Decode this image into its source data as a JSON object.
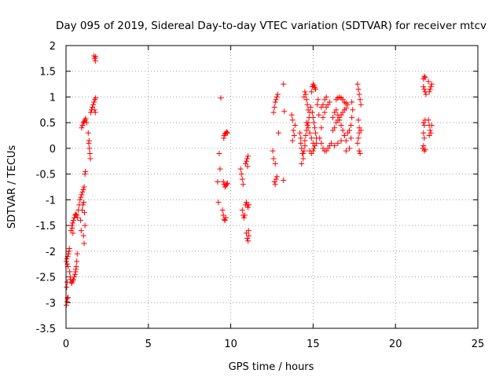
{
  "chart_data": {
    "type": "scatter",
    "title": "Day 095 of 2019, Sidereal Day-to-day VTEC variation (SDTVAR) for receiver mtcv",
    "xlabel": "GPS time / hours",
    "ylabel": "SDTVAR / TECUs",
    "xlim": [
      0,
      25
    ],
    "ylim": [
      -3.5,
      2
    ],
    "xticks": [
      0,
      5,
      10,
      15,
      20,
      25
    ],
    "xtick_labels": [
      "0",
      "5",
      "10",
      "15",
      "20",
      "25"
    ],
    "yticks": [
      -3.5,
      -3,
      -2.5,
      -2,
      -1.5,
      -1,
      -0.5,
      0,
      0.5,
      1,
      1.5,
      2
    ],
    "ytick_labels": [
      "-3.5",
      "-3",
      "-2.5",
      "-2",
      "-1.5",
      "-1",
      "-0.5",
      "0",
      "0.5",
      "1",
      "1.5",
      "2"
    ],
    "grid": true,
    "marker": "plus",
    "series": [
      {
        "name": "SDTVAR",
        "color": "#ff0000",
        "points": [
          [
            0.02,
            -3.05
          ],
          [
            0.05,
            -2.98
          ],
          [
            0.08,
            -2.92
          ],
          [
            0.12,
            -2.9
          ],
          [
            0.04,
            -2.7
          ],
          [
            0.07,
            -2.6
          ],
          [
            0.02,
            -2.2
          ],
          [
            0.05,
            -2.15
          ],
          [
            0.1,
            -2.1
          ],
          [
            0.15,
            -2.05
          ],
          [
            0.18,
            -2.0
          ],
          [
            0.2,
            -1.95
          ],
          [
            0.08,
            -2.25
          ],
          [
            0.12,
            -2.3
          ],
          [
            0.22,
            -2.4
          ],
          [
            0.25,
            -2.5
          ],
          [
            0.28,
            -2.55
          ],
          [
            0.32,
            -2.6
          ],
          [
            0.35,
            -2.62
          ],
          [
            0.4,
            -2.58
          ],
          [
            0.45,
            -2.55
          ],
          [
            0.5,
            -2.5
          ],
          [
            0.55,
            -2.45
          ],
          [
            0.6,
            -2.35
          ],
          [
            0.65,
            -2.2
          ],
          [
            0.68,
            -2.05
          ],
          [
            0.62,
            -2.3
          ],
          [
            0.58,
            -2.4
          ],
          [
            0.3,
            -1.6
          ],
          [
            0.35,
            -1.5
          ],
          [
            0.4,
            -1.45
          ],
          [
            0.45,
            -1.4
          ],
          [
            0.5,
            -1.35
          ],
          [
            0.55,
            -1.3
          ],
          [
            0.6,
            -1.28
          ],
          [
            0.65,
            -1.3
          ],
          [
            0.7,
            -1.35
          ],
          [
            0.38,
            -1.55
          ],
          [
            0.42,
            -1.65
          ],
          [
            0.75,
            -1.2
          ],
          [
            0.8,
            -1.1
          ],
          [
            0.85,
            -1.0
          ],
          [
            0.9,
            -0.95
          ],
          [
            0.95,
            -0.9
          ],
          [
            1.0,
            -0.85
          ],
          [
            1.05,
            -0.8
          ],
          [
            1.1,
            -0.75
          ],
          [
            0.88,
            -1.4
          ],
          [
            0.92,
            -1.6
          ],
          [
            0.98,
            -1.2
          ],
          [
            1.02,
            -1.1
          ],
          [
            1.08,
            -1.05
          ],
          [
            1.12,
            -1.25
          ],
          [
            1.15,
            -1.5
          ],
          [
            1.06,
            -1.7
          ],
          [
            1.1,
            -1.85
          ],
          [
            1.15,
            -0.5
          ],
          [
            1.18,
            -0.45
          ],
          [
            0.95,
            0.4
          ],
          [
            1.0,
            0.45
          ],
          [
            1.05,
            0.5
          ],
          [
            1.1,
            0.52
          ],
          [
            1.15,
            0.55
          ],
          [
            1.2,
            0.58
          ],
          [
            1.25,
            0.5
          ],
          [
            1.35,
            0.3
          ],
          [
            1.4,
            0.15
          ],
          [
            1.42,
            0.0
          ],
          [
            1.45,
            -0.1
          ],
          [
            1.48,
            -0.2
          ],
          [
            1.38,
            0.1
          ],
          [
            1.5,
            0.7
          ],
          [
            1.55,
            0.75
          ],
          [
            1.6,
            0.8
          ],
          [
            1.65,
            0.85
          ],
          [
            1.7,
            0.9
          ],
          [
            1.75,
            0.95
          ],
          [
            1.8,
            0.98
          ],
          [
            1.78,
            0.7
          ],
          [
            1.72,
            0.75
          ],
          [
            1.7,
            1.8
          ],
          [
            1.75,
            1.75
          ],
          [
            1.78,
            1.7
          ],
          [
            1.8,
            1.78
          ],
          [
            9.4,
            0.98
          ],
          [
            9.3,
            -0.1
          ],
          [
            9.35,
            -0.4
          ],
          [
            9.2,
            -0.65
          ],
          [
            9.25,
            -1.05
          ],
          [
            9.5,
            -1.2
          ],
          [
            9.55,
            -1.3
          ],
          [
            9.6,
            -1.38
          ],
          [
            9.65,
            -1.4
          ],
          [
            9.7,
            -1.35
          ],
          [
            9.55,
            -0.65
          ],
          [
            9.6,
            -0.7
          ],
          [
            9.65,
            -0.75
          ],
          [
            9.7,
            -0.72
          ],
          [
            9.75,
            -0.7
          ],
          [
            9.8,
            -0.68
          ],
          [
            9.6,
            0.25
          ],
          [
            9.65,
            0.28
          ],
          [
            9.7,
            0.3
          ],
          [
            9.75,
            0.32
          ],
          [
            9.8,
            0.3
          ],
          [
            9.58,
            0.2
          ],
          [
            10.6,
            -0.4
          ],
          [
            10.65,
            -0.5
          ],
          [
            10.7,
            -0.6
          ],
          [
            10.75,
            -0.7
          ],
          [
            10.7,
            -1.2
          ],
          [
            10.75,
            -1.3
          ],
          [
            10.8,
            -1.35
          ],
          [
            10.85,
            -1.3
          ],
          [
            10.9,
            -1.1
          ],
          [
            10.95,
            -1.05
          ],
          [
            11.0,
            -1.1
          ],
          [
            11.05,
            -1.15
          ],
          [
            11.1,
            -1.1
          ],
          [
            10.95,
            -1.65
          ],
          [
            11.0,
            -1.75
          ],
          [
            11.05,
            -1.8
          ],
          [
            11.1,
            -1.7
          ],
          [
            11.08,
            -1.6
          ],
          [
            10.9,
            -0.3
          ],
          [
            10.95,
            -0.25
          ],
          [
            11.0,
            -0.2
          ],
          [
            11.05,
            -0.15
          ],
          [
            11.02,
            -0.35
          ],
          [
            12.6,
            0.7
          ],
          [
            12.65,
            0.8
          ],
          [
            12.7,
            0.9
          ],
          [
            12.75,
            0.95
          ],
          [
            12.8,
            1.0
          ],
          [
            12.85,
            1.05
          ],
          [
            12.55,
            -0.05
          ],
          [
            12.6,
            -0.2
          ],
          [
            12.7,
            -0.3
          ],
          [
            12.65,
            -0.65
          ],
          [
            12.7,
            -0.7
          ],
          [
            12.75,
            -0.6
          ],
          [
            12.8,
            -0.55
          ],
          [
            12.9,
            0.3
          ],
          [
            13.2,
            1.25
          ],
          [
            13.25,
            0.72
          ],
          [
            13.2,
            -0.62
          ],
          [
            13.7,
            0.65
          ],
          [
            13.75,
            0.55
          ],
          [
            13.8,
            0.35
          ],
          [
            13.85,
            0.25
          ],
          [
            13.75,
            0.15
          ],
          [
            13.9,
            0.45
          ],
          [
            14.2,
            0.3
          ],
          [
            14.25,
            0.1
          ],
          [
            14.3,
            0.0
          ],
          [
            14.35,
            -0.1
          ],
          [
            14.4,
            -0.2
          ],
          [
            14.3,
            -0.3
          ],
          [
            14.25,
            0.2
          ],
          [
            14.5,
            0.15
          ],
          [
            14.55,
            0.25
          ],
          [
            14.6,
            0.35
          ],
          [
            14.7,
            0.5
          ],
          [
            14.75,
            0.6
          ],
          [
            14.8,
            0.7
          ],
          [
            14.85,
            0.8
          ],
          [
            14.45,
            1.0
          ],
          [
            14.5,
            1.1
          ],
          [
            14.55,
            1.05
          ],
          [
            14.6,
            0.95
          ],
          [
            14.65,
            0.85
          ],
          [
            14.7,
            0.75
          ],
          [
            14.9,
            1.1
          ],
          [
            14.95,
            1.2
          ],
          [
            15.0,
            1.25
          ],
          [
            15.05,
            1.22
          ],
          [
            15.1,
            1.18
          ],
          [
            15.15,
            1.15
          ],
          [
            14.6,
            0.5
          ],
          [
            14.65,
            0.45
          ],
          [
            14.7,
            0.4
          ],
          [
            14.8,
            0.3
          ],
          [
            14.9,
            0.2
          ],
          [
            15.0,
            0.1
          ],
          [
            15.05,
            0.0
          ],
          [
            14.95,
            0.7
          ],
          [
            15.0,
            0.6
          ],
          [
            15.05,
            0.5
          ],
          [
            15.1,
            0.4
          ],
          [
            15.15,
            0.3
          ],
          [
            15.2,
            0.2
          ],
          [
            14.8,
            -0.05
          ],
          [
            14.9,
            -0.1
          ],
          [
            15.0,
            -0.05
          ],
          [
            15.1,
            0.05
          ],
          [
            15.2,
            0.1
          ],
          [
            14.4,
            -0.1
          ],
          [
            14.45,
            -0.05
          ],
          [
            14.5,
            0.05
          ],
          [
            15.4,
            0.2
          ],
          [
            15.5,
            0.4
          ],
          [
            15.6,
            0.6
          ],
          [
            15.7,
            0.7
          ],
          [
            15.8,
            0.8
          ],
          [
            15.9,
            0.85
          ],
          [
            16.0,
            0.9
          ],
          [
            15.5,
            0.1
          ],
          [
            15.6,
            0.0
          ],
          [
            15.7,
            -0.05
          ],
          [
            15.8,
            -0.05
          ],
          [
            15.9,
            0.0
          ],
          [
            16.0,
            0.05
          ],
          [
            16.1,
            0.1
          ],
          [
            15.5,
            0.8
          ],
          [
            15.6,
            0.85
          ],
          [
            15.7,
            0.95
          ],
          [
            15.8,
            1.0
          ],
          [
            16.2,
            0.6
          ],
          [
            16.3,
            0.7
          ],
          [
            16.4,
            0.75
          ],
          [
            16.5,
            0.65
          ],
          [
            16.6,
            0.55
          ],
          [
            16.7,
            0.45
          ],
          [
            16.8,
            0.35
          ],
          [
            16.9,
            0.25
          ],
          [
            17.0,
            0.15
          ],
          [
            16.2,
            0.35
          ],
          [
            16.3,
            0.4
          ],
          [
            16.4,
            0.5
          ],
          [
            16.5,
            0.55
          ],
          [
            16.6,
            0.6
          ],
          [
            16.7,
            0.65
          ],
          [
            16.8,
            0.7
          ],
          [
            16.9,
            0.75
          ],
          [
            17.0,
            0.78
          ],
          [
            16.4,
            0.95
          ],
          [
            16.5,
            0.98
          ],
          [
            16.6,
            1.0
          ],
          [
            16.7,
            0.98
          ],
          [
            16.8,
            0.95
          ],
          [
            16.9,
            0.9
          ],
          [
            17.0,
            0.88
          ],
          [
            17.1,
            0.85
          ],
          [
            16.3,
            0.05
          ],
          [
            16.5,
            0.1
          ],
          [
            16.7,
            0.15
          ],
          [
            16.9,
            0.25
          ],
          [
            17.1,
            0.3
          ],
          [
            17.2,
            0.35
          ],
          [
            17.3,
            0.45
          ],
          [
            17.0,
            -0.05
          ],
          [
            17.2,
            0.0
          ],
          [
            17.3,
            0.2
          ],
          [
            17.35,
            0.6
          ],
          [
            17.4,
            0.75
          ],
          [
            17.35,
            0.9
          ],
          [
            15.3,
            0.95
          ],
          [
            15.25,
            0.85
          ],
          [
            15.35,
            0.65
          ],
          [
            17.7,
            1.25
          ],
          [
            17.75,
            1.15
          ],
          [
            17.8,
            1.05
          ],
          [
            17.85,
            0.95
          ],
          [
            17.9,
            0.85
          ],
          [
            17.75,
            0.55
          ],
          [
            17.8,
            0.4
          ],
          [
            17.7,
            0.1
          ],
          [
            17.75,
            0.2
          ],
          [
            17.8,
            -0.05
          ],
          [
            17.85,
            -0.1
          ],
          [
            17.9,
            0.35
          ],
          [
            17.8,
            0.3
          ],
          [
            21.7,
            1.35
          ],
          [
            21.75,
            1.4
          ],
          [
            21.8,
            1.38
          ],
          [
            21.7,
            1.2
          ],
          [
            21.75,
            1.15
          ],
          [
            21.8,
            1.1
          ],
          [
            21.85,
            1.05
          ],
          [
            21.7,
            0.5
          ],
          [
            21.75,
            0.45
          ],
          [
            21.8,
            0.55
          ],
          [
            21.7,
            0.3
          ],
          [
            21.75,
            0.2
          ],
          [
            21.65,
            0.0
          ],
          [
            21.7,
            0.05
          ],
          [
            21.75,
            -0.05
          ],
          [
            21.8,
            -0.02
          ],
          [
            22.05,
            1.1
          ],
          [
            22.1,
            1.15
          ],
          [
            22.15,
            1.2
          ],
          [
            22.2,
            1.25
          ],
          [
            22.0,
            1.3
          ],
          [
            22.0,
            0.55
          ],
          [
            22.05,
            0.45
          ],
          [
            22.1,
            0.35
          ],
          [
            22.15,
            0.3
          ],
          [
            22.2,
            0.45
          ],
          [
            22.05,
            0.25
          ]
        ]
      }
    ]
  }
}
